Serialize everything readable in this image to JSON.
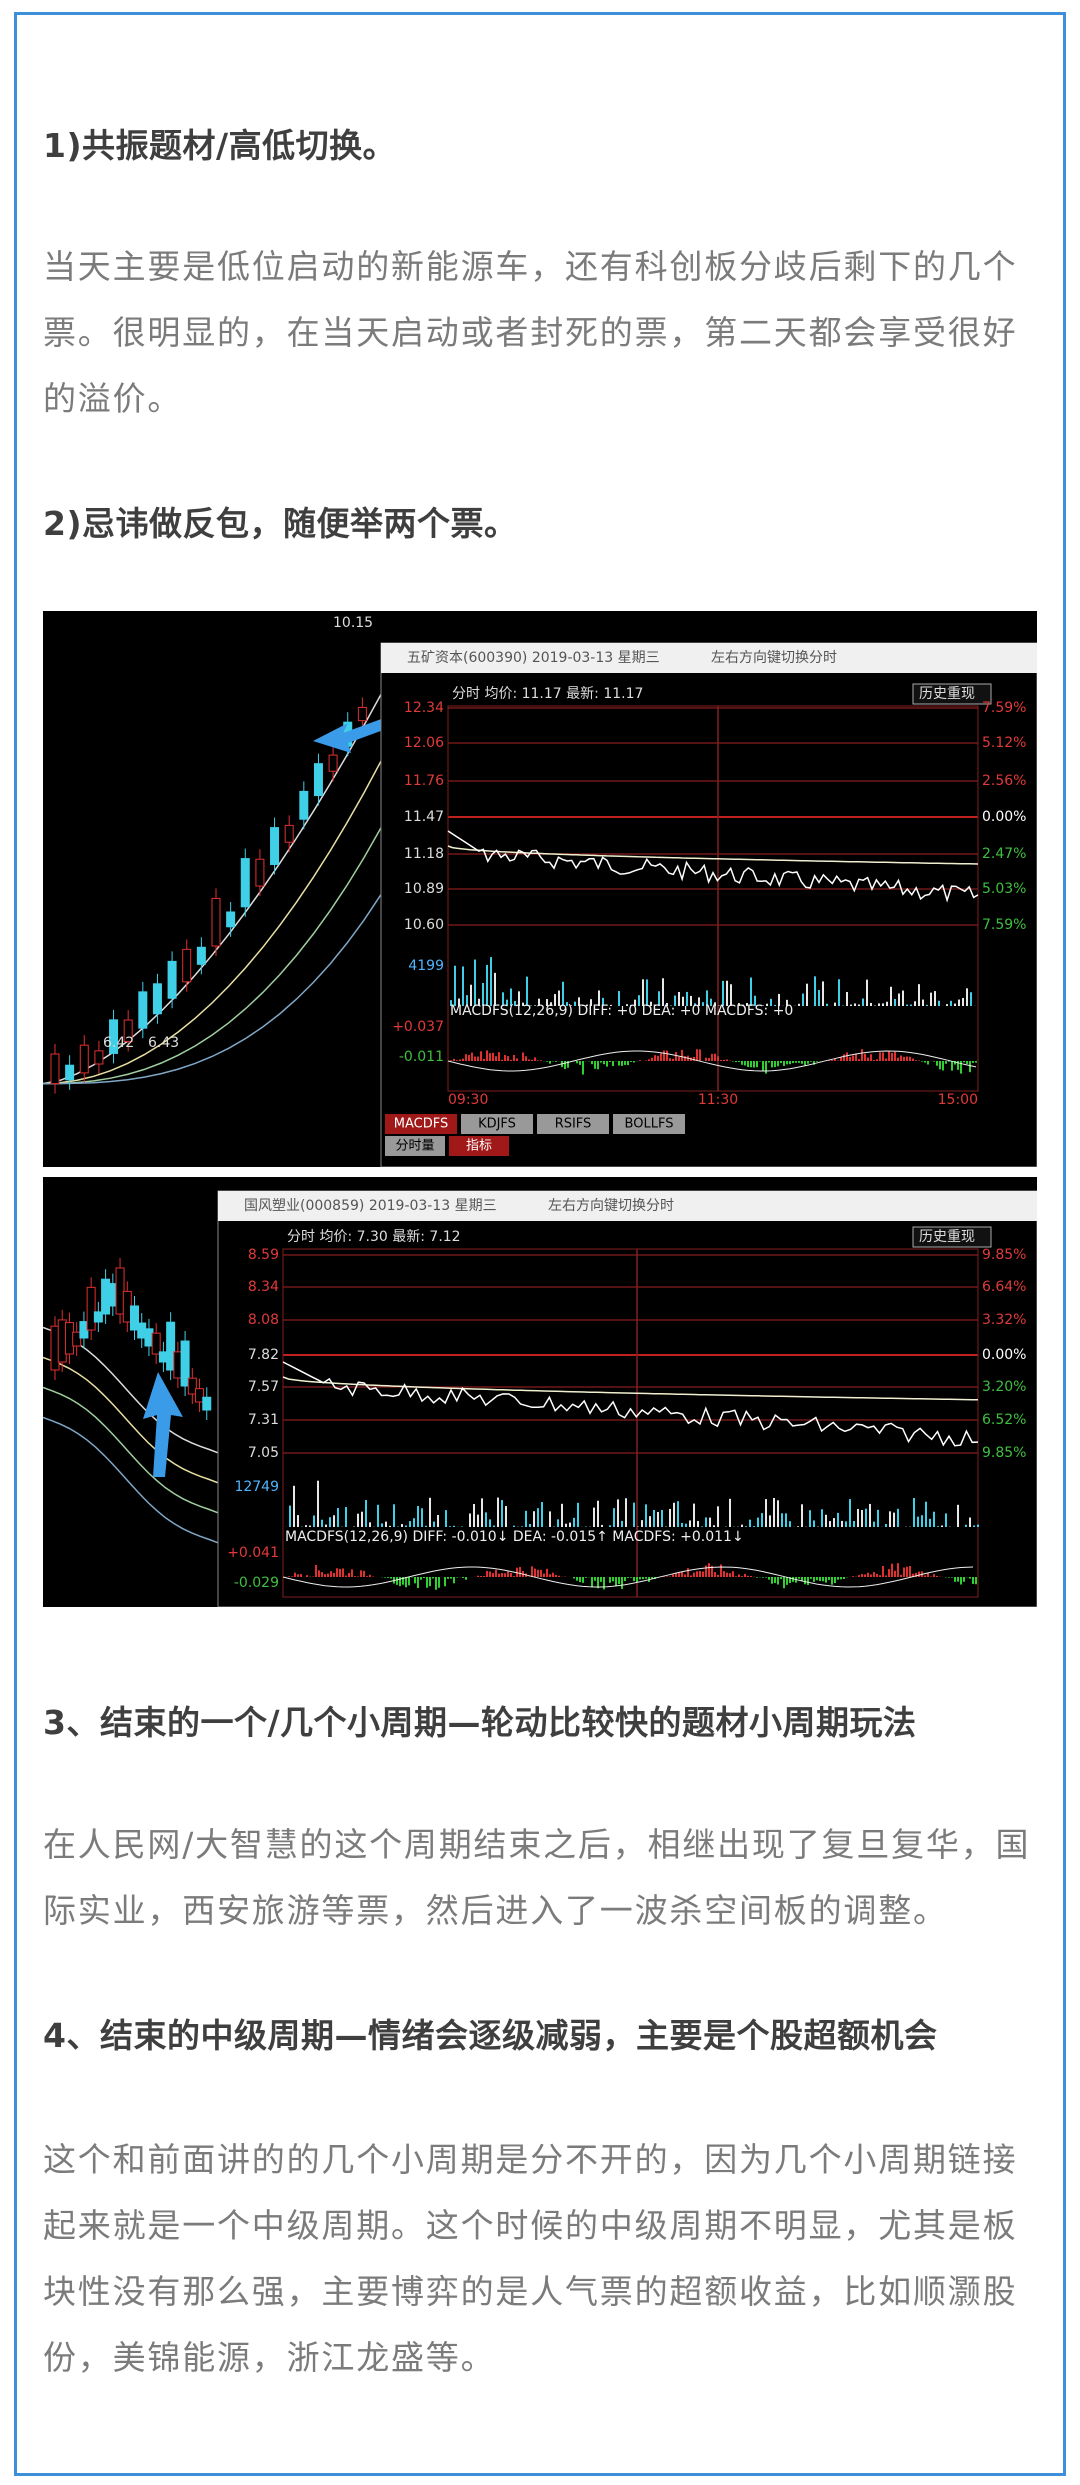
{
  "heading_1": "1)共振题材/高低切换。",
  "paragraph_1": "当天主要是低位启动的新能源车，还有科创板分歧后剩下的几个票。很明显的，在当天启动或者封死的票，第二天都会享受很好的溢价。",
  "heading_2": "2)忌讳做反包，随便举两个票。",
  "figure_1": {
    "left_labels": [
      "10.15",
      "6.42",
      "6.43"
    ],
    "window_title": "五矿资本(600390) 2019-03-13 星期三",
    "window_hint": "左右方向键切换分时",
    "header": "分时 均价: 11.17 最新: 11.17",
    "replay_button": "历史重现",
    "price_labels": [
      "12.34",
      "12.06",
      "11.76",
      "11.47",
      "11.18",
      "10.89",
      "10.60"
    ],
    "percent_labels": [
      "7.59%",
      "5.12%",
      "2.56%",
      "0.00%",
      "2.47%",
      "5.03%",
      "7.59%"
    ],
    "volume_label": "4199",
    "macd_label": "MACDFS(12,26,9) DIFF: +0 DEA: +0 MACDFS: +0",
    "macd_scale": [
      "+0.037",
      "-0.011"
    ],
    "time_labels": [
      "09:30",
      "11:30",
      "15:00"
    ],
    "tabs": [
      "MACDFS",
      "KDJFS",
      "RSIFS",
      "BOLLFS"
    ],
    "subtabs": [
      "分时量",
      "指标"
    ]
  },
  "figure_2": {
    "window_title": "国风塑业(000859) 2019-03-13 星期三",
    "window_hint": "左右方向键切换分时",
    "header": "分时 均价: 7.30 最新: 7.12",
    "replay_button": "历史重现",
    "price_labels": [
      "8.59",
      "8.34",
      "8.08",
      "7.82",
      "7.57",
      "7.31",
      "7.05"
    ],
    "percent_labels": [
      "9.85%",
      "6.64%",
      "3.32%",
      "0.00%",
      "3.20%",
      "6.52%",
      "9.85%"
    ],
    "volume_label": "12749",
    "macd_label": "MACDFS(12,26,9) DIFF: -0.010↓ DEA: -0.015↑ MACDFS: +0.011↓",
    "macd_scale": [
      "+0.041",
      "-0.029"
    ]
  },
  "heading_3": "3、结束的一个/几个小周期—轮动比较快的题材小周期玩法",
  "paragraph_3": "在人民网/大智慧的这个周期结束之后，相继出现了复旦复华，国际实业，西安旅游等票，然后进入了一波杀空间板的调整。",
  "heading_4": "4、结束的中级周期—情绪会逐级减弱，主要是个股超额机会",
  "paragraph_4": "这个和前面讲的的几个小周期是分不开的，因为几个小周期链接起来就是一个中级周期。这个时候的中级周期不明显，尤其是板块性没有那么强，主要博弈的是人气票的超额收益，比如顺灏股份，美锦能源，浙江龙盛等。"
}
